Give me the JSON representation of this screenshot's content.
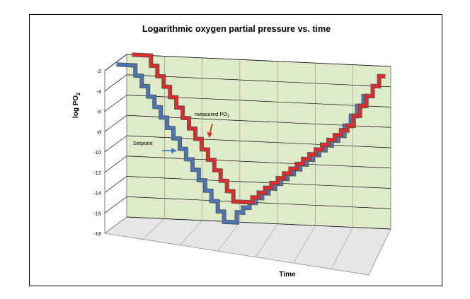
{
  "chart_data": {
    "type": "line",
    "title": "Logarithmic oxygen partial pressure vs. time",
    "xlabel": "Time",
    "ylabel": "log PO",
    "ylabel_sub": "2",
    "ylim": [
      -18,
      -2
    ],
    "yticks": [
      -2,
      -4,
      -6,
      -8,
      -10,
      -12,
      -14,
      -16,
      -18
    ],
    "grid": true,
    "style": "3d",
    "x_category_count": 7,
    "colors": {
      "wall": "#ddebc8",
      "floor": "#e6e6e6",
      "grid": "#000000"
    },
    "series": [
      {
        "name": "Setpoint",
        "color": "#4a76b8",
        "x": [
          0,
          3,
          3,
          4,
          4,
          5,
          5,
          6,
          6,
          7,
          7,
          8,
          8,
          9,
          9,
          10,
          10,
          11,
          11,
          12,
          12,
          13,
          13,
          14,
          14,
          15,
          15,
          16,
          16,
          17,
          17,
          18,
          18,
          19,
          19,
          20,
          20,
          21,
          21,
          22,
          22,
          23,
          23,
          24,
          24,
          25,
          25,
          26,
          26,
          27,
          27,
          28,
          28,
          29,
          29,
          30,
          30,
          31,
          31,
          32,
          32,
          33,
          33,
          34,
          34,
          35,
          35,
          36,
          36,
          37,
          37,
          38,
          38,
          39,
          39,
          40
        ],
        "y": [
          -2,
          -2,
          -3,
          -3,
          -4,
          -4,
          -5,
          -5,
          -6,
          -6,
          -7,
          -7,
          -8,
          -8,
          -9,
          -9,
          -10,
          -10,
          -11,
          -11,
          -12,
          -12,
          -13,
          -13,
          -14,
          -14,
          -15,
          -15,
          -16,
          -16,
          -17,
          -17,
          -17,
          -17,
          -16,
          -16,
          -15.5,
          -15.5,
          -15,
          -15,
          -14.5,
          -14.5,
          -14,
          -14,
          -13.5,
          -13.5,
          -13,
          -13,
          -12.5,
          -12.5,
          -12,
          -12,
          -11.5,
          -11.5,
          -11,
          -11,
          -10.5,
          -10.5,
          -10,
          -10,
          -9.5,
          -9.5,
          -9,
          -9,
          -8.5,
          -8.5,
          -8,
          -8,
          -7,
          -7,
          -6,
          -6,
          -5,
          -5,
          -4,
          -4
        ]
      },
      {
        "name": "measured PO",
        "name_sub": "2",
        "color": "#e22a2a",
        "x": [
          0,
          3,
          3,
          4,
          4,
          5,
          5,
          6,
          6,
          7,
          7,
          8,
          8,
          9,
          9,
          10,
          10,
          11,
          11,
          12,
          12,
          13,
          13,
          14,
          14,
          15,
          15,
          16,
          16,
          17,
          17,
          18,
          18,
          19,
          19,
          20,
          20,
          21,
          21,
          22,
          22,
          23,
          23,
          24,
          24,
          25,
          25,
          26,
          26,
          27,
          27,
          28,
          28,
          29,
          29,
          30,
          30,
          31,
          31,
          32,
          32,
          33,
          33,
          34,
          34,
          35,
          35,
          36,
          36,
          37,
          37,
          38,
          38,
          39,
          39,
          40
        ],
        "y": [
          -2,
          -2,
          -3,
          -3,
          -4,
          -4,
          -5,
          -5,
          -6,
          -6,
          -7,
          -7,
          -8,
          -8,
          -9,
          -9,
          -10,
          -10,
          -11,
          -11,
          -12,
          -12,
          -13,
          -13,
          -14,
          -14,
          -15,
          -15,
          -16,
          -16,
          -16,
          -16,
          -16,
          -16,
          -15.5,
          -15.5,
          -15,
          -15,
          -14.5,
          -14.5,
          -14,
          -14,
          -13.5,
          -13.5,
          -13,
          -13,
          -12.5,
          -12.5,
          -12,
          -12,
          -11.5,
          -11.5,
          -11,
          -11,
          -10.5,
          -10.5,
          -10,
          -10,
          -9.5,
          -9.5,
          -9,
          -9,
          -8.5,
          -8.5,
          -8,
          -8,
          -7,
          -7,
          -6,
          -6,
          -5,
          -5,
          -4,
          -4,
          -3,
          -3
        ]
      }
    ],
    "annotations": [
      {
        "text": "measured PO",
        "sub": "2",
        "series": 1
      },
      {
        "text": "Setpoint",
        "series": 0
      }
    ],
    "x_range": [
      0,
      40
    ]
  }
}
